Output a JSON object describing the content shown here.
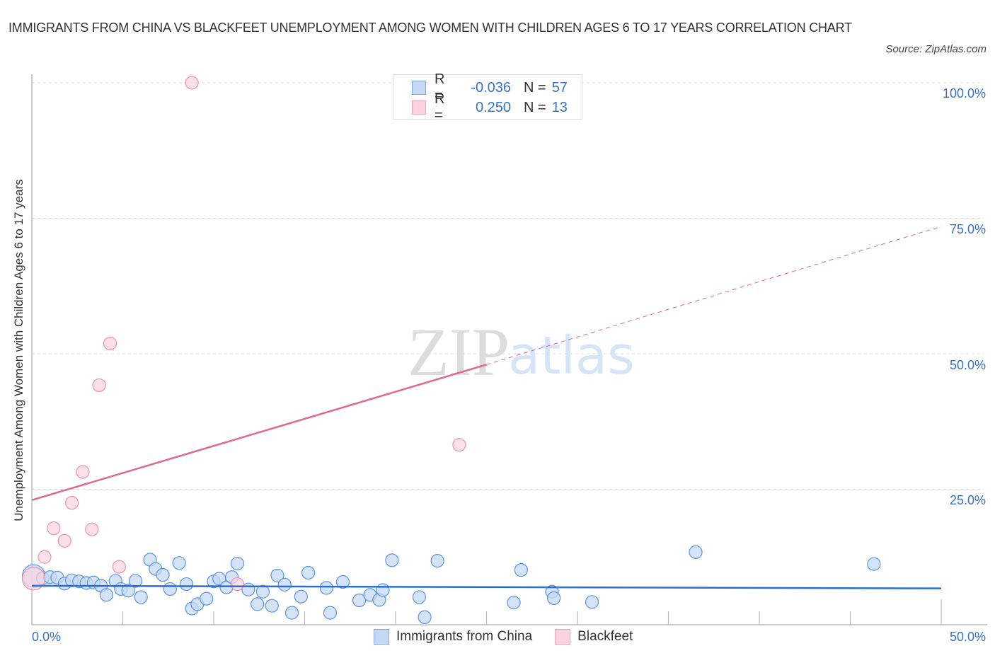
{
  "header": {
    "title": "IMMIGRANTS FROM CHINA VS BLACKFEET UNEMPLOYMENT AMONG WOMEN WITH CHILDREN AGES 6 TO 17 YEARS CORRELATION CHART",
    "source": "Source: ZipAtlas.com"
  },
  "watermark": {
    "zip": "ZIP",
    "atlas": "atlas"
  },
  "legend": {
    "rows": [
      {
        "r_label": "R =",
        "r_value": "-0.036",
        "n_label": "N =",
        "n_value": "57",
        "color": "#a9c7f0"
      },
      {
        "r_label": "R =",
        "r_value": "0.250",
        "n_label": "N =",
        "n_value": "13",
        "color": "#f7bcd0"
      }
    ]
  },
  "axes": {
    "ylabel": "Unemployment Among Women with Children Ages 6 to 17 years",
    "yticks": [
      "100.0%",
      "75.0%",
      "50.0%",
      "25.0%"
    ],
    "xticks": [
      "0.0%",
      "50.0%"
    ]
  },
  "bottom_legend": {
    "items": [
      {
        "label": "Immigrants from China",
        "color": "#a9c7f0"
      },
      {
        "label": "Blackfeet",
        "color": "#f7bcd0"
      }
    ]
  },
  "colors": {
    "china_fill": "#c5d9f4",
    "china_stroke": "#5b93e0",
    "china_line": "#2a6fd0",
    "blackfeet_fill": "#fbd3e0",
    "blackfeet_stroke": "#eb8fb0",
    "blackfeet_line": "#e0688f",
    "tick_label": "#3a72c8"
  },
  "chart_data": {
    "type": "scatter",
    "title": "IMMIGRANTS FROM CHINA VS BLACKFEET UNEMPLOYMENT AMONG WOMEN WITH CHILDREN AGES 6 TO 17 YEARS CORRELATION CHART",
    "xlabel": "",
    "ylabel": "Unemployment Among Women with Children Ages 6 to 17 years",
    "xlim": [
      0,
      50
    ],
    "ylim": [
      0,
      100
    ],
    "x_tick_labels": [
      "0.0%",
      "50.0%"
    ],
    "y_tick_labels": [
      "25.0%",
      "50.0%",
      "75.0%",
      "100.0%"
    ],
    "grid": true,
    "legend_position": "bottom",
    "series": [
      {
        "name": "Immigrants from China",
        "R": -0.036,
        "N": 57,
        "trend": {
          "x": [
            0,
            50
          ],
          "y": [
            7.2,
            6.7
          ]
        },
        "points": [
          [
            0.1,
            9.0
          ],
          [
            0.6,
            8.6
          ],
          [
            1.0,
            8.8
          ],
          [
            1.4,
            8.7
          ],
          [
            1.8,
            7.6
          ],
          [
            2.2,
            8.2
          ],
          [
            2.6,
            8.0
          ],
          [
            3.0,
            7.7
          ],
          [
            3.4,
            7.8
          ],
          [
            3.8,
            7.2
          ],
          [
            4.1,
            5.5
          ],
          [
            4.6,
            8.1
          ],
          [
            4.9,
            6.6
          ],
          [
            5.3,
            6.3
          ],
          [
            5.7,
            8.1
          ],
          [
            6.0,
            5.1
          ],
          [
            6.5,
            12.0
          ],
          [
            6.8,
            10.3
          ],
          [
            7.2,
            9.2
          ],
          [
            7.6,
            6.6
          ],
          [
            8.1,
            11.4
          ],
          [
            8.5,
            7.5
          ],
          [
            8.8,
            3.0
          ],
          [
            9.1,
            3.8
          ],
          [
            9.6,
            4.8
          ],
          [
            10.0,
            8.0
          ],
          [
            10.3,
            8.5
          ],
          [
            10.7,
            6.9
          ],
          [
            11.0,
            8.8
          ],
          [
            11.3,
            11.3
          ],
          [
            11.9,
            6.5
          ],
          [
            12.4,
            3.8
          ],
          [
            12.7,
            6.1
          ],
          [
            13.2,
            3.5
          ],
          [
            13.5,
            9.1
          ],
          [
            13.9,
            7.4
          ],
          [
            14.3,
            2.2
          ],
          [
            14.8,
            5.2
          ],
          [
            15.2,
            9.6
          ],
          [
            16.2,
            6.8
          ],
          [
            16.4,
            2.2
          ],
          [
            17.1,
            7.9
          ],
          [
            18.0,
            4.5
          ],
          [
            18.6,
            5.5
          ],
          [
            19.1,
            4.6
          ],
          [
            19.3,
            6.4
          ],
          [
            19.8,
            11.9
          ],
          [
            21.3,
            5.1
          ],
          [
            21.6,
            1.4
          ],
          [
            22.3,
            11.8
          ],
          [
            26.5,
            4.1
          ],
          [
            26.9,
            10.1
          ],
          [
            28.6,
            6.1
          ],
          [
            28.7,
            4.9
          ],
          [
            30.8,
            4.2
          ],
          [
            36.5,
            13.4
          ],
          [
            46.3,
            11.2
          ]
        ]
      },
      {
        "name": "Blackfeet",
        "R": 0.25,
        "N": 13,
        "trend": {
          "x": [
            0,
            25
          ],
          "y": [
            23.0,
            48.0
          ],
          "dashed_extension": {
            "x": [
              25,
              50
            ],
            "y": [
              48.0,
              73.5
            ]
          }
        },
        "points": [
          [
            0.1,
            8.5
          ],
          [
            0.7,
            12.5
          ],
          [
            1.2,
            17.8
          ],
          [
            1.8,
            15.5
          ],
          [
            2.2,
            22.5
          ],
          [
            2.8,
            28.2
          ],
          [
            3.3,
            17.6
          ],
          [
            3.7,
            44.2
          ],
          [
            4.3,
            51.9
          ],
          [
            4.8,
            10.7
          ],
          [
            8.8,
            100.0
          ],
          [
            11.3,
            7.5
          ],
          [
            23.5,
            33.2
          ]
        ]
      }
    ]
  }
}
